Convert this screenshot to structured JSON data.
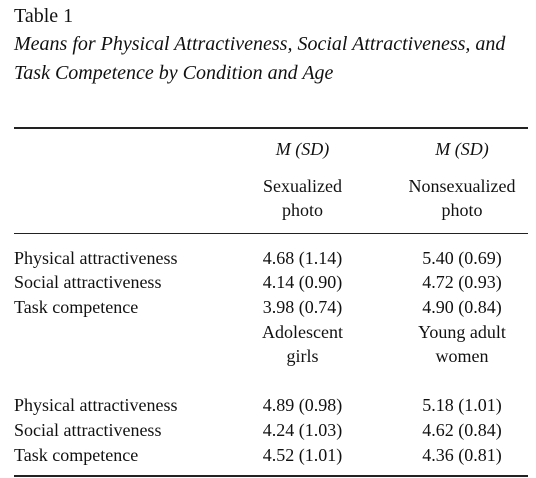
{
  "table": {
    "label": "Table 1",
    "caption": "Means for Physical Attractiveness, Social Attractiveness, and Task Competence by Condition and Age",
    "stat_header": [
      "M (SD)",
      "M (SD)"
    ],
    "panels": [
      {
        "col_headers": [
          [
            "Sexualized",
            "photo"
          ],
          [
            "Nonsexualized",
            "photo"
          ]
        ],
        "rows": [
          {
            "label": "Physical attractiveness",
            "values": [
              "4.68 (1.14)",
              "5.40 (0.69)"
            ]
          },
          {
            "label": "Social attractiveness",
            "values": [
              "4.14 (0.90)",
              "4.72 (0.93)"
            ]
          },
          {
            "label": "Task competence",
            "values": [
              "3.98 (0.74)",
              "4.90 (0.84)"
            ]
          }
        ]
      },
      {
        "col_headers": [
          [
            "Adolescent",
            "girls"
          ],
          [
            "Young adult",
            "women"
          ]
        ],
        "rows": [
          {
            "label": "Physical attractiveness",
            "values": [
              "4.89 (0.98)",
              "5.18 (1.01)"
            ]
          },
          {
            "label": "Social attractiveness",
            "values": [
              "4.24 (1.03)",
              "4.62 (0.84)"
            ]
          },
          {
            "label": "Task competence",
            "values": [
              "4.52 (1.01)",
              "4.36 (0.81)"
            ]
          }
        ]
      }
    ]
  }
}
